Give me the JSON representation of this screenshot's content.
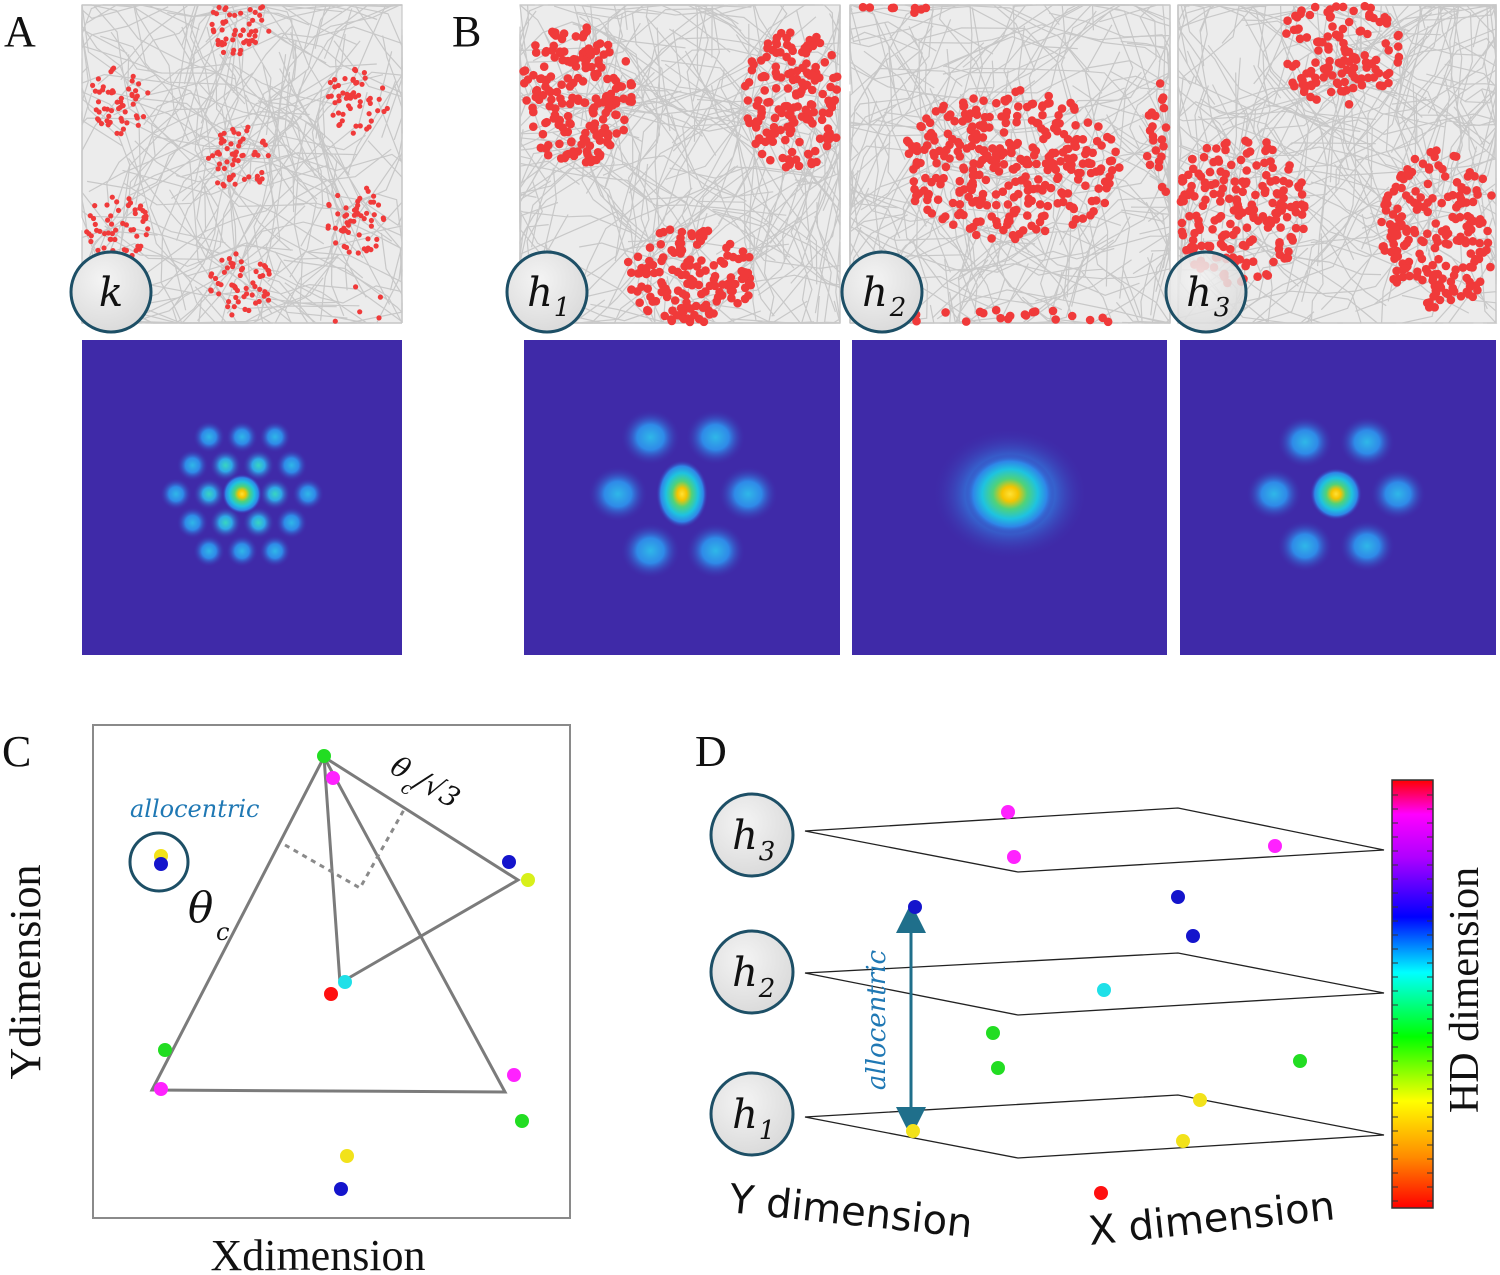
{
  "panels": {
    "A": {
      "letter": "A",
      "badge": "k"
    },
    "B": {
      "letter": "B",
      "badges": [
        "h",
        "h",
        "h"
      ],
      "subscripts": [
        "1",
        "2",
        "3"
      ]
    },
    "C": {
      "letter": "C",
      "allocentric": "allocentric",
      "theta": "θ",
      "theta_sub": "c",
      "theta_frac": "θ",
      "theta_frac_sub": "c",
      "sqrt_part": "/√3",
      "xlabel": "Xdimension",
      "ylabel": "Ydimension"
    },
    "D": {
      "letter": "D",
      "allocentric": "allocentric",
      "badges": [
        "h",
        "h",
        "h"
      ],
      "subscripts": [
        "3",
        "2",
        "1"
      ],
      "ylabel": "Y dimension",
      "xlabel": "X dimension",
      "colorbar_label": "HD dimension"
    }
  },
  "colors": {
    "trajectory": "#cfcfcf",
    "spike": "#f03a3a",
    "heatmap_bg": "#3f2aa8",
    "badge_stroke": "#1d4f66",
    "allocentric_text": "#1f78b4",
    "arrow": "#1f6f8b",
    "triangle": "#7b7b7b"
  }
}
